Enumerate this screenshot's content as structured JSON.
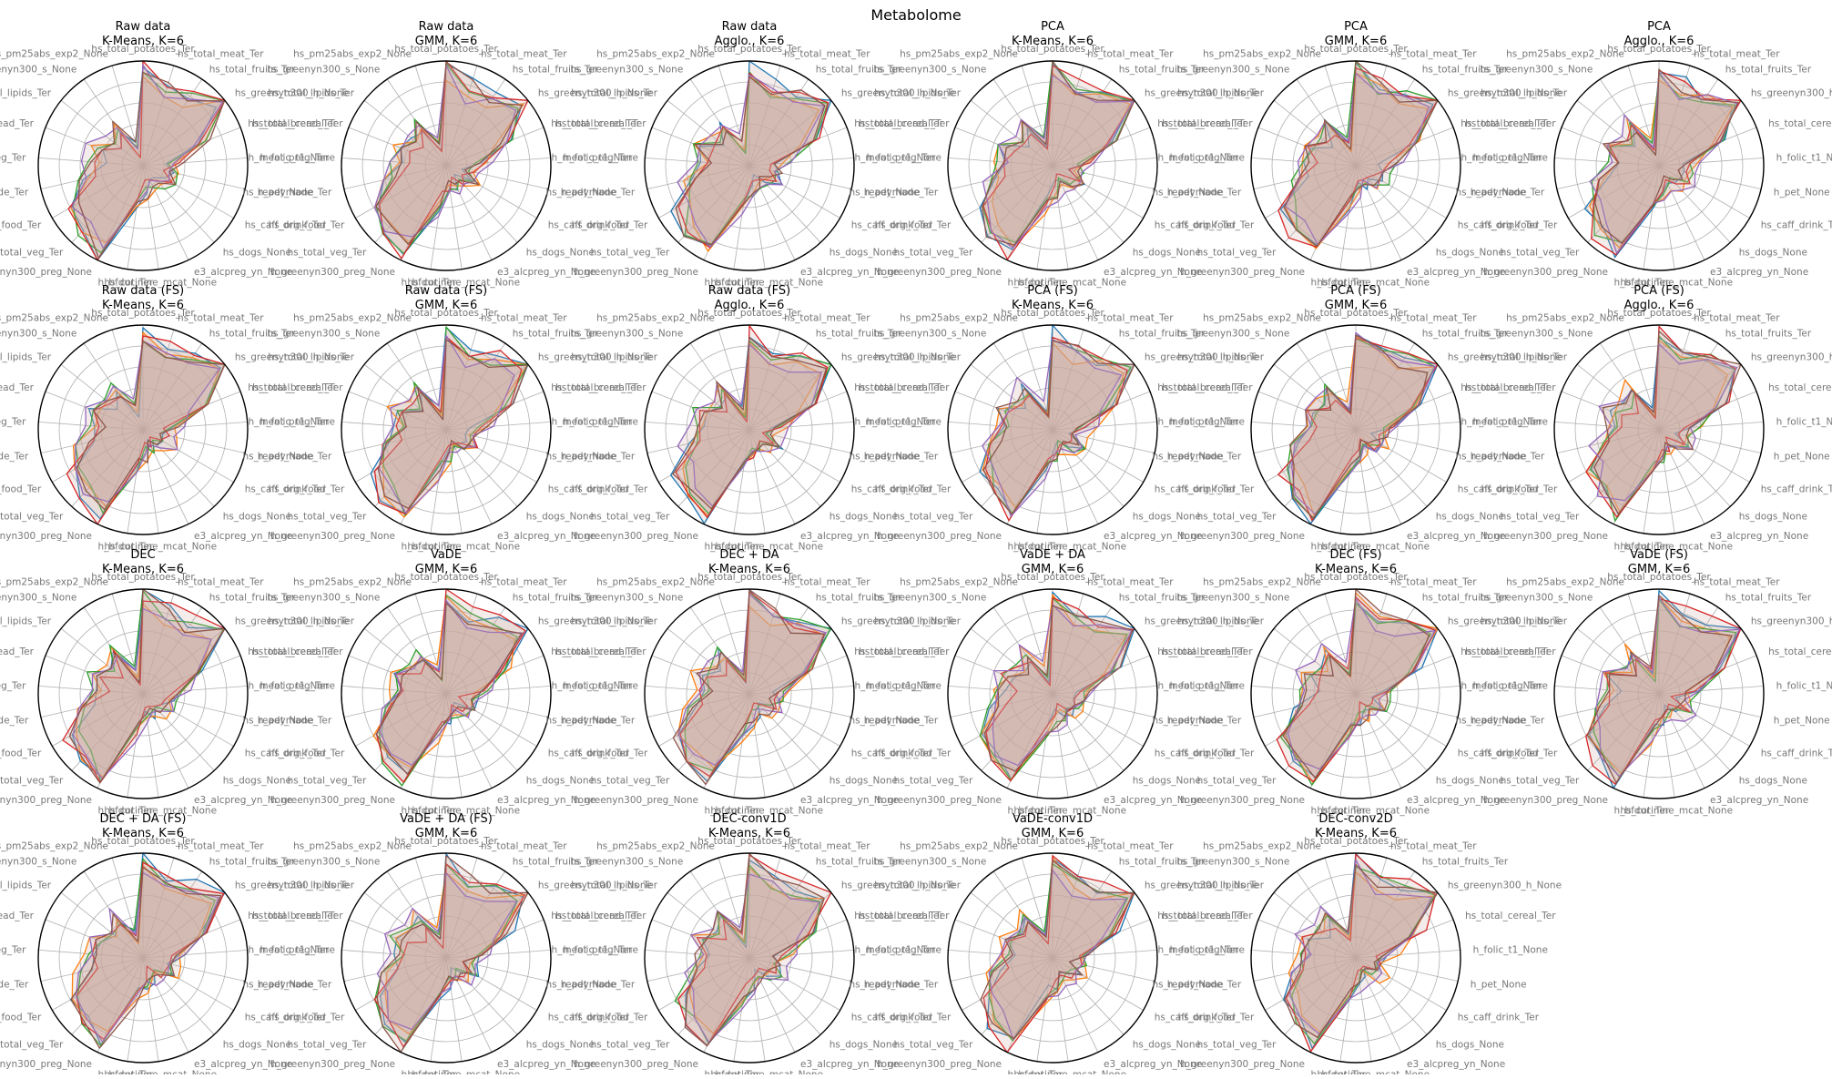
{
  "suptitle": "Metabolome",
  "colors": [
    "#1f77b4",
    "#ff7f0e",
    "#2ca02c",
    "#d62728",
    "#9467bd",
    "#8c564b"
  ],
  "fill_color": "#c8a8a0",
  "chart_data": {
    "type": "radar",
    "shared_axes": [
      "hs_total_potatoes_Ter",
      "hs_total_meat_Ter",
      "hs_total_fruits_Ter",
      "hs_greenyn300_h_None",
      "hs_total_cereal_Ter",
      "h_folic_t1_None",
      "h_pet_None",
      "hs_caff_drink_Ter",
      "hs_dogs_None",
      "e3_alcpreg_yn_None",
      "hs_cotinine_mcat_None",
      "h_bfdur_Ter",
      "h_greenyn300_preg_None",
      "hs_total_veg_Ter",
      "hs_org_food_Ter",
      "hs_readymade_Ter",
      "h_meat_preg_Ter",
      "hs_total_bread_Ter",
      "hs_total_lipids_Ter",
      "hs_greenyn300_s_None",
      "hs_pm25abs_exp2_None"
    ],
    "series_count": 6,
    "panels": [
      {
        "title": [
          "Raw data",
          "K-Means, K=6"
        ]
      },
      {
        "title": [
          "Raw data",
          "GMM, K=6"
        ]
      },
      {
        "title": [
          "Raw data",
          "Agglo., K=6"
        ]
      },
      {
        "title": [
          "PCA",
          "K-Means, K=6"
        ]
      },
      {
        "title": [
          "PCA",
          "GMM, K=6"
        ]
      },
      {
        "title": [
          "PCA",
          "Agglo., K=6"
        ]
      },
      {
        "title": [
          "Raw data (FS)",
          "K-Means, K=6"
        ]
      },
      {
        "title": [
          "Raw data (FS)",
          "GMM, K=6"
        ]
      },
      {
        "title": [
          "Raw data (FS)",
          "Agglo., K=6"
        ]
      },
      {
        "title": [
          "PCA (FS)",
          "K-Means, K=6"
        ]
      },
      {
        "title": [
          "PCA (FS)",
          "GMM, K=6"
        ]
      },
      {
        "title": [
          "PCA (FS)",
          "Agglo., K=6"
        ]
      },
      {
        "title": [
          "DEC",
          "K-Means, K=6"
        ]
      },
      {
        "title": [
          "VaDE",
          "GMM, K=6"
        ]
      },
      {
        "title": [
          "DEC + DA",
          "K-Means, K=6"
        ]
      },
      {
        "title": [
          "VaDE + DA",
          "GMM, K=6"
        ]
      },
      {
        "title": [
          "DEC (FS)",
          "K-Means, K=6"
        ]
      },
      {
        "title": [
          "VaDE (FS)",
          "GMM, K=6"
        ]
      },
      {
        "title": [
          "DEC + DA (FS)",
          "K-Means, K=6"
        ]
      },
      {
        "title": [
          "VaDE + DA (FS)",
          "GMM, K=6"
        ]
      },
      {
        "title": [
          "DEC-conv1D",
          "K-Means, K=6"
        ]
      },
      {
        "title": [
          "VaDE-conv1D",
          "GMM, K=6"
        ]
      },
      {
        "title": [
          "DEC-conv2D",
          "K-Means, K=6"
        ]
      }
    ],
    "series_template": [
      [
        0.95,
        0.8,
        0.82,
        0.98,
        0.62,
        0.3,
        0.22,
        0.28,
        0.2,
        0.18,
        0.22,
        0.35,
        0.92,
        0.85,
        0.78,
        0.55,
        0.42,
        0.48,
        0.35,
        0.45,
        0.18
      ],
      [
        0.9,
        0.72,
        0.76,
        0.92,
        0.58,
        0.35,
        0.28,
        0.32,
        0.25,
        0.22,
        0.26,
        0.4,
        0.86,
        0.8,
        0.72,
        0.6,
        0.48,
        0.52,
        0.4,
        0.5,
        0.22
      ],
      [
        0.92,
        0.76,
        0.8,
        0.95,
        0.6,
        0.32,
        0.25,
        0.3,
        0.22,
        0.2,
        0.24,
        0.38,
        0.9,
        0.82,
        0.75,
        0.58,
        0.45,
        0.5,
        0.38,
        0.48,
        0.2
      ],
      [
        0.96,
        0.82,
        0.84,
        1.0,
        0.64,
        0.28,
        0.2,
        0.26,
        0.18,
        0.16,
        0.2,
        0.33,
        0.94,
        0.87,
        0.8,
        0.52,
        0.4,
        0.46,
        0.33,
        0.43,
        0.16
      ],
      [
        0.88,
        0.7,
        0.74,
        0.9,
        0.56,
        0.38,
        0.3,
        0.34,
        0.28,
        0.24,
        0.28,
        0.42,
        0.84,
        0.78,
        0.7,
        0.62,
        0.5,
        0.54,
        0.42,
        0.52,
        0.24
      ],
      [
        0.93,
        0.78,
        0.79,
        0.96,
        0.61,
        0.31,
        0.24,
        0.29,
        0.21,
        0.19,
        0.23,
        0.36,
        0.91,
        0.84,
        0.76,
        0.57,
        0.44,
        0.49,
        0.36,
        0.47,
        0.19
      ]
    ]
  }
}
